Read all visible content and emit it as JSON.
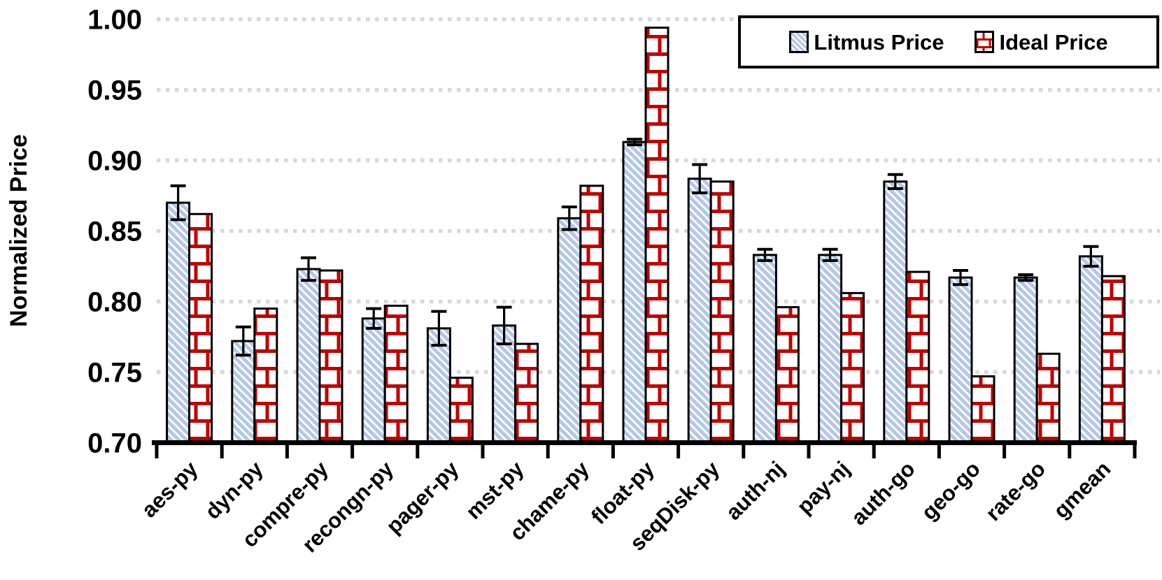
{
  "chart_data": {
    "type": "bar",
    "title": "",
    "xlabel": "",
    "ylabel": "Normalized Price",
    "ylim": [
      0.7,
      1.0
    ],
    "ytick_step": 0.05,
    "ytick_labels": [
      "0.70",
      "0.75",
      "0.80",
      "0.85",
      "0.90",
      "0.95",
      "1.00"
    ],
    "grid": "horizontal-dotted",
    "legend_position": "top-right",
    "categories": [
      "aes-py",
      "dyn-py",
      "compre-py",
      "recongn-py",
      "pager-py",
      "mst-py",
      "chame-py",
      "float-py",
      "seqDisk-py",
      "auth-nj",
      "pay-nj",
      "auth-go",
      "geo-go",
      "rate-go",
      "gmean"
    ],
    "series": [
      {
        "name": "Litmus Price",
        "pattern": "diagonal-hatch",
        "pattern_color": "#b4c7e7",
        "outline_color": "#000000",
        "values": [
          0.87,
          0.772,
          0.823,
          0.788,
          0.781,
          0.783,
          0.859,
          0.913,
          0.887,
          0.833,
          0.833,
          0.885,
          0.817,
          0.817,
          0.832
        ],
        "errors": [
          0.012,
          0.01,
          0.008,
          0.007,
          0.012,
          0.013,
          0.008,
          0.002,
          0.01,
          0.004,
          0.004,
          0.005,
          0.005,
          0.002,
          0.007
        ]
      },
      {
        "name": "Ideal Price",
        "pattern": "brick",
        "pattern_color": "#c00000",
        "outline_color": "#000000",
        "values": [
          0.862,
          0.795,
          0.822,
          0.797,
          0.746,
          0.77,
          0.882,
          0.994,
          0.885,
          0.796,
          0.806,
          0.821,
          0.747,
          0.763,
          0.818
        ],
        "errors": [
          0,
          0,
          0,
          0,
          0,
          0,
          0,
          0,
          0,
          0,
          0,
          0,
          0,
          0,
          0
        ]
      }
    ],
    "colors": {
      "background": "#ffffff",
      "grid": "#d8d8d8",
      "axis": "#000000",
      "error_bar": "#000000"
    }
  }
}
